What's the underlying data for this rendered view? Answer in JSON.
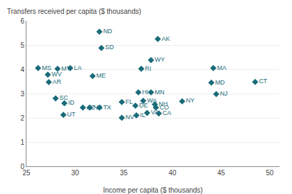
{
  "chart_data": {
    "type": "scatter",
    "xlabel": "Income per capita ($ thousands)",
    "ylabel": "Transfers received per capita ($ thousands)",
    "x": [
      26.2,
      27.2,
      28.2,
      29.5,
      27.3,
      28.0,
      28.9,
      28.8,
      30.8,
      31.5,
      32.5,
      31.8,
      32.5,
      32.7,
      34.8,
      34.8,
      36.8,
      36.5,
      36.2,
      36.3,
      38.5,
      37.8,
      37.8,
      37.0,
      38.2,
      38.3,
      37.4,
      38.6,
      41.0,
      44.5,
      44.2,
      44.0,
      48.5
    ],
    "values": [
      4.05,
      3.78,
      4.02,
      4.05,
      3.47,
      2.8,
      2.6,
      2.12,
      2.42,
      2.42,
      2.42,
      3.72,
      5.55,
      4.88,
      2.0,
      2.65,
      4.02,
      3.05,
      2.5,
      2.1,
      5.25,
      4.38,
      3.05,
      2.7,
      2.55,
      2.42,
      2.2,
      2.18,
      2.68,
      2.98,
      4.05,
      3.45,
      3.48
    ],
    "annotations": [
      "MS",
      "WV",
      "MT",
      "LA",
      "AR",
      "SC",
      "ID",
      "UT",
      "AZ",
      "NC",
      "TX",
      "ME",
      "ND",
      "SD",
      "NV",
      "FL",
      "RI",
      "HI",
      "DE",
      "IL",
      "AK",
      "WY",
      "MN",
      "WA",
      "NH",
      "CO",
      "VA",
      "CA",
      "NY",
      "NJ",
      "MA",
      "MD",
      "CT"
    ],
    "color": "#1a6b7a",
    "marker": "diamond",
    "xlim": [
      25,
      51
    ],
    "ylim": [
      0,
      6
    ],
    "xticks": [
      25,
      30,
      35,
      40,
      45,
      50
    ],
    "yticks": [
      0,
      1,
      2,
      3,
      4,
      5,
      6
    ],
    "grid": "y"
  }
}
